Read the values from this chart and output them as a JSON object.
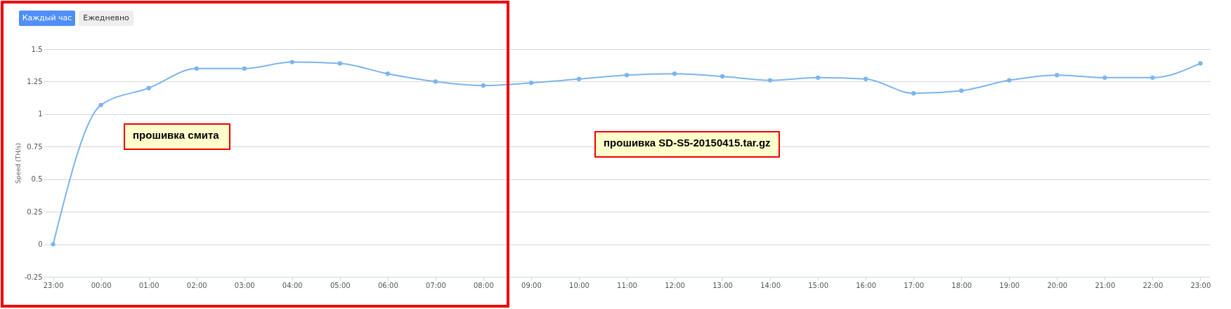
{
  "chart_data": {
    "type": "line",
    "ylabel": "Speed (TH/s)",
    "categories": [
      "23:00",
      "00:00",
      "01:00",
      "02:00",
      "03:00",
      "04:00",
      "05:00",
      "06:00",
      "07:00",
      "08:00",
      "09:00",
      "10:00",
      "11:00",
      "12:00",
      "13:00",
      "14:00",
      "15:00",
      "16:00",
      "17:00",
      "18:00",
      "19:00",
      "20:00",
      "21:00",
      "22:00",
      "23:00"
    ],
    "series": [
      {
        "color": "#7cb5ec",
        "values": [
          0,
          1.07,
          1.2,
          1.35,
          1.35,
          1.4,
          1.39,
          1.31,
          1.25,
          1.22,
          1.24,
          1.27,
          1.3,
          1.31,
          1.29,
          1.26,
          1.28,
          1.27,
          1.16,
          1.18,
          1.26,
          1.3,
          1.28,
          1.28,
          1.39
        ]
      }
    ],
    "ylim": [
      -0.25,
      1.5
    ],
    "yticks": [
      -0.25,
      0,
      0.25,
      0.5,
      0.75,
      1,
      1.25,
      1.5
    ],
    "grid": "y",
    "marker": "circle",
    "line_style": "solid",
    "legend": false,
    "annotations": [
      "Каждый час",
      "Ежедневно",
      "прошивка смита",
      "прошивка SD-S5-20150415.tar.gz"
    ]
  }
}
